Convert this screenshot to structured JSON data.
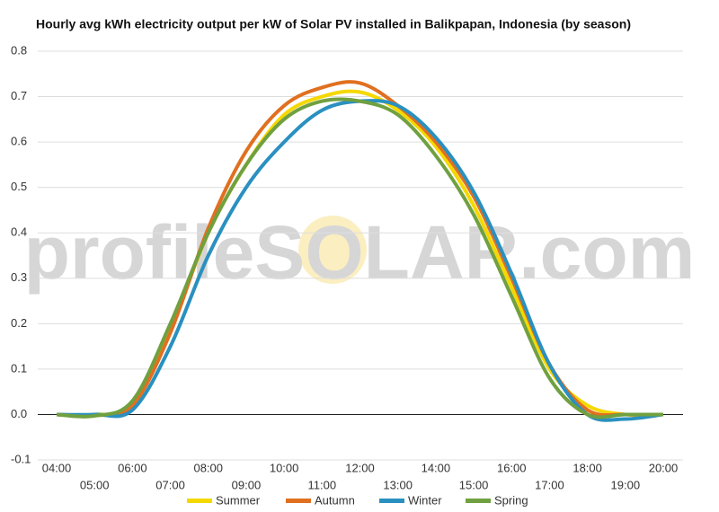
{
  "chart_data": {
    "type": "line",
    "title": "Hourly avg kWh electricity output per kW of Solar PV installed in Balikpapan, Indonesia (by season)",
    "watermark": "profileSOLAR.com",
    "categories": [
      "04:00",
      "05:00",
      "06:00",
      "07:00",
      "08:00",
      "09:00",
      "10:00",
      "11:00",
      "12:00",
      "13:00",
      "14:00",
      "15:00",
      "16:00",
      "17:00",
      "18:00",
      "19:00",
      "20:00"
    ],
    "series": [
      {
        "name": "Summer",
        "color": "#f5d800",
        "values": [
          0,
          0,
          0.02,
          0.19,
          0.4,
          0.55,
          0.66,
          0.7,
          0.71,
          0.67,
          0.59,
          0.46,
          0.28,
          0.1,
          0.02,
          0,
          0
        ]
      },
      {
        "name": "Autumn",
        "color": "#e07020",
        "values": [
          0,
          -0.002,
          0.02,
          0.18,
          0.41,
          0.58,
          0.68,
          0.72,
          0.73,
          0.68,
          0.6,
          0.48,
          0.3,
          0.11,
          0.01,
          0,
          0
        ]
      },
      {
        "name": "Winter",
        "color": "#2a90c0",
        "values": [
          0,
          0,
          0.01,
          0.15,
          0.35,
          0.5,
          0.6,
          0.67,
          0.69,
          0.68,
          0.61,
          0.49,
          0.31,
          0.11,
          0,
          -0.01,
          0
        ]
      },
      {
        "name": "Spring",
        "color": "#70a040",
        "values": [
          0,
          -0.003,
          0.03,
          0.2,
          0.4,
          0.55,
          0.65,
          0.69,
          0.69,
          0.66,
          0.57,
          0.44,
          0.26,
          0.08,
          0,
          0,
          0
        ]
      }
    ],
    "ylim": [
      -0.1,
      0.8
    ],
    "yticks": [
      -0.1,
      {
        "value": 0,
        "label": "0.0"
      },
      0.1,
      0.2,
      0.3,
      0.4,
      0.5,
      0.6,
      0.7,
      0.8
    ],
    "grid": true
  }
}
